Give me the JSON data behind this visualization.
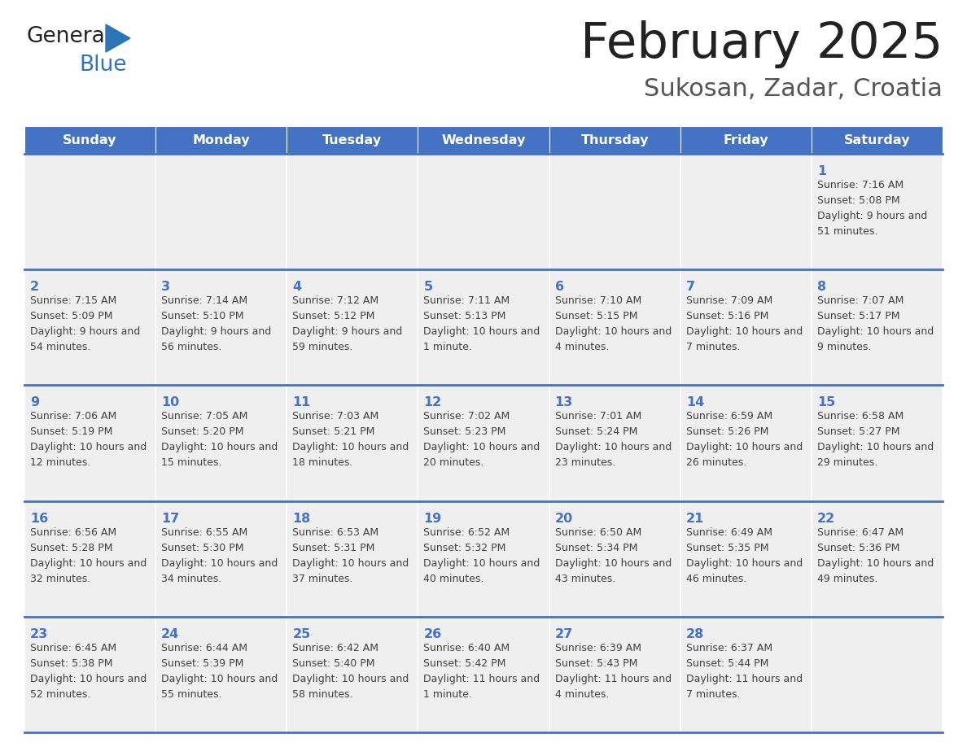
{
  "title": "February 2025",
  "subtitle": "Sukosan, Zadar, Croatia",
  "header_color": "#4472C4",
  "header_text_color": "#FFFFFF",
  "cell_bg_color": "#EFEFEF",
  "day_number_color": "#4472C4",
  "text_color": "#404040",
  "border_color": "#4472C4",
  "days_of_week": [
    "Sunday",
    "Monday",
    "Tuesday",
    "Wednesday",
    "Thursday",
    "Friday",
    "Saturday"
  ],
  "calendar_data": [
    [
      null,
      null,
      null,
      null,
      null,
      null,
      {
        "day": 1,
        "sunrise": "7:16 AM",
        "sunset": "5:08 PM",
        "daylight": "9 hours and 51 minutes."
      }
    ],
    [
      {
        "day": 2,
        "sunrise": "7:15 AM",
        "sunset": "5:09 PM",
        "daylight": "9 hours and 54 minutes."
      },
      {
        "day": 3,
        "sunrise": "7:14 AM",
        "sunset": "5:10 PM",
        "daylight": "9 hours and 56 minutes."
      },
      {
        "day": 4,
        "sunrise": "7:12 AM",
        "sunset": "5:12 PM",
        "daylight": "9 hours and 59 minutes."
      },
      {
        "day": 5,
        "sunrise": "7:11 AM",
        "sunset": "5:13 PM",
        "daylight": "10 hours and 1 minute."
      },
      {
        "day": 6,
        "sunrise": "7:10 AM",
        "sunset": "5:15 PM",
        "daylight": "10 hours and 4 minutes."
      },
      {
        "day": 7,
        "sunrise": "7:09 AM",
        "sunset": "5:16 PM",
        "daylight": "10 hours and 7 minutes."
      },
      {
        "day": 8,
        "sunrise": "7:07 AM",
        "sunset": "5:17 PM",
        "daylight": "10 hours and 9 minutes."
      }
    ],
    [
      {
        "day": 9,
        "sunrise": "7:06 AM",
        "sunset": "5:19 PM",
        "daylight": "10 hours and 12 minutes."
      },
      {
        "day": 10,
        "sunrise": "7:05 AM",
        "sunset": "5:20 PM",
        "daylight": "10 hours and 15 minutes."
      },
      {
        "day": 11,
        "sunrise": "7:03 AM",
        "sunset": "5:21 PM",
        "daylight": "10 hours and 18 minutes."
      },
      {
        "day": 12,
        "sunrise": "7:02 AM",
        "sunset": "5:23 PM",
        "daylight": "10 hours and 20 minutes."
      },
      {
        "day": 13,
        "sunrise": "7:01 AM",
        "sunset": "5:24 PM",
        "daylight": "10 hours and 23 minutes."
      },
      {
        "day": 14,
        "sunrise": "6:59 AM",
        "sunset": "5:26 PM",
        "daylight": "10 hours and 26 minutes."
      },
      {
        "day": 15,
        "sunrise": "6:58 AM",
        "sunset": "5:27 PM",
        "daylight": "10 hours and 29 minutes."
      }
    ],
    [
      {
        "day": 16,
        "sunrise": "6:56 AM",
        "sunset": "5:28 PM",
        "daylight": "10 hours and 32 minutes."
      },
      {
        "day": 17,
        "sunrise": "6:55 AM",
        "sunset": "5:30 PM",
        "daylight": "10 hours and 34 minutes."
      },
      {
        "day": 18,
        "sunrise": "6:53 AM",
        "sunset": "5:31 PM",
        "daylight": "10 hours and 37 minutes."
      },
      {
        "day": 19,
        "sunrise": "6:52 AM",
        "sunset": "5:32 PM",
        "daylight": "10 hours and 40 minutes."
      },
      {
        "day": 20,
        "sunrise": "6:50 AM",
        "sunset": "5:34 PM",
        "daylight": "10 hours and 43 minutes."
      },
      {
        "day": 21,
        "sunrise": "6:49 AM",
        "sunset": "5:35 PM",
        "daylight": "10 hours and 46 minutes."
      },
      {
        "day": 22,
        "sunrise": "6:47 AM",
        "sunset": "5:36 PM",
        "daylight": "10 hours and 49 minutes."
      }
    ],
    [
      {
        "day": 23,
        "sunrise": "6:45 AM",
        "sunset": "5:38 PM",
        "daylight": "10 hours and 52 minutes."
      },
      {
        "day": 24,
        "sunrise": "6:44 AM",
        "sunset": "5:39 PM",
        "daylight": "10 hours and 55 minutes."
      },
      {
        "day": 25,
        "sunrise": "6:42 AM",
        "sunset": "5:40 PM",
        "daylight": "10 hours and 58 minutes."
      },
      {
        "day": 26,
        "sunrise": "6:40 AM",
        "sunset": "5:42 PM",
        "daylight": "11 hours and 1 minute."
      },
      {
        "day": 27,
        "sunrise": "6:39 AM",
        "sunset": "5:43 PM",
        "daylight": "11 hours and 4 minutes."
      },
      {
        "day": 28,
        "sunrise": "6:37 AM",
        "sunset": "5:44 PM",
        "daylight": "11 hours and 7 minutes."
      },
      null
    ]
  ]
}
